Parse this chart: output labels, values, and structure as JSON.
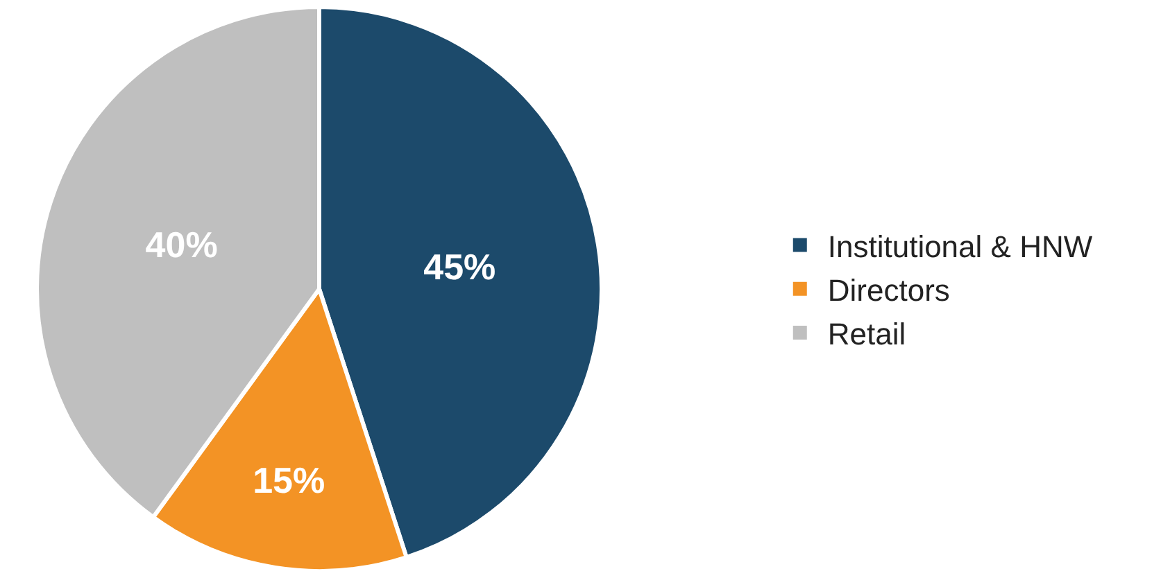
{
  "chart_data": {
    "type": "pie",
    "categories": [
      "Institutional & HNW",
      "Directors",
      "Retail"
    ],
    "values": [
      45,
      15,
      40
    ],
    "colors": [
      "#1c4a6b",
      "#f39325",
      "#bfbfbf"
    ],
    "value_labels": [
      "45%",
      "15%",
      "40%"
    ],
    "legend": "right"
  }
}
